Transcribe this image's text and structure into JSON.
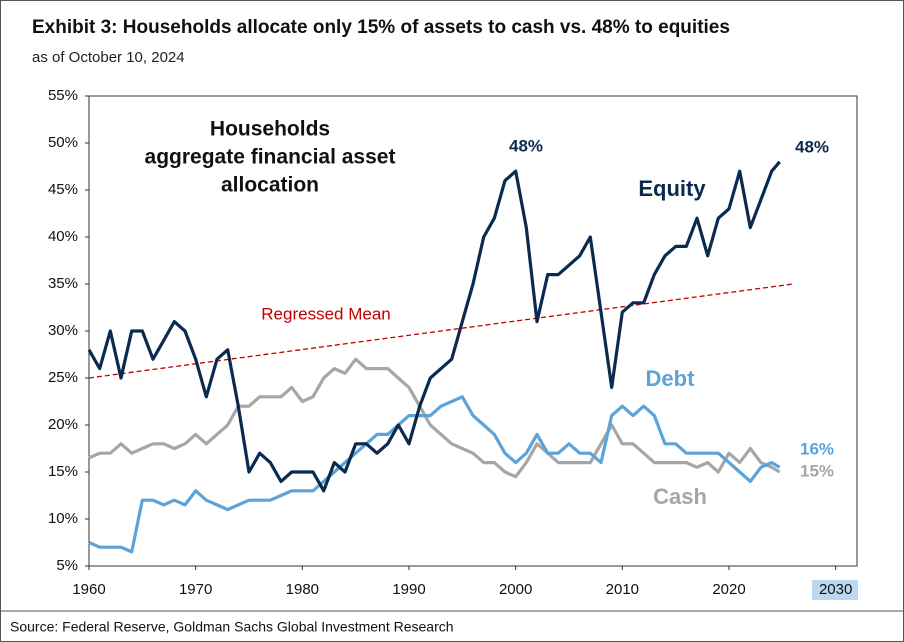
{
  "chart_data": {
    "type": "line",
    "title": "Exhibit 3: Households allocate only 15% of assets to cash vs. 48% to equities",
    "subtitle": "as of October 10, 2024",
    "inset_title": [
      "Households",
      "aggregate financial asset",
      "allocation"
    ],
    "source": "Source: Federal Reserve, Goldman Sachs Global Investment Research",
    "x": [
      1960,
      1961,
      1962,
      1963,
      1964,
      1965,
      1966,
      1967,
      1968,
      1969,
      1970,
      1971,
      1972,
      1973,
      1974,
      1975,
      1976,
      1977,
      1978,
      1979,
      1980,
      1981,
      1982,
      1983,
      1984,
      1985,
      1986,
      1987,
      1988,
      1989,
      1990,
      1991,
      1992,
      1993,
      1994,
      1995,
      1996,
      1997,
      1998,
      1999,
      2000,
      2001,
      2002,
      2003,
      2004,
      2005,
      2006,
      2007,
      2008,
      2009,
      2010,
      2011,
      2012,
      2013,
      2014,
      2015,
      2016,
      2017,
      2018,
      2019,
      2020,
      2021,
      2022,
      2023,
      2024,
      2024.75
    ],
    "series": [
      {
        "name": "Equity",
        "color": "#0b2a4f",
        "values": [
          28,
          26,
          30,
          25,
          30,
          30,
          27,
          29,
          31,
          30,
          27,
          23,
          27,
          28,
          22,
          15,
          17,
          16,
          14,
          15,
          15,
          15,
          13,
          16,
          15,
          18,
          18,
          17,
          18,
          20,
          18,
          22,
          25,
          26,
          27,
          31,
          35,
          40,
          42,
          46,
          47,
          41,
          31,
          36,
          36,
          37,
          38,
          40,
          32,
          24,
          32,
          33,
          33,
          36,
          38,
          39,
          39,
          42,
          38,
          42,
          43,
          47,
          41,
          44,
          47,
          48
        ]
      },
      {
        "name": "Debt",
        "color": "#5ba3d9",
        "values": [
          7.5,
          7,
          7,
          7,
          6.5,
          12,
          12,
          11.5,
          12,
          11.5,
          13,
          12,
          11.5,
          11,
          11.5,
          12,
          12,
          12,
          12.5,
          13,
          13,
          13,
          14,
          15,
          16,
          17,
          18,
          19,
          19,
          20,
          21,
          21,
          21,
          22,
          22.5,
          23,
          21,
          20,
          19,
          17,
          16,
          17,
          19,
          17,
          17,
          18,
          17,
          17,
          16,
          21,
          22,
          21,
          22,
          21,
          18,
          18,
          17,
          17,
          17,
          17,
          16,
          15,
          14,
          15.5,
          16,
          15.5
        ]
      },
      {
        "name": "Cash",
        "color": "#a6a6a6",
        "values": [
          16.5,
          17,
          17,
          18,
          17,
          17.5,
          18,
          18,
          17.5,
          18,
          19,
          18,
          19,
          20,
          22,
          22,
          23,
          23,
          23,
          24,
          22.5,
          23,
          25,
          26,
          25.5,
          27,
          26,
          26,
          26,
          25,
          24,
          22,
          20,
          19,
          18,
          17.5,
          17,
          16,
          16,
          15,
          14.5,
          16,
          18,
          17,
          16,
          16,
          16,
          16,
          18,
          20,
          18,
          18,
          17,
          16,
          16,
          16,
          16,
          15.5,
          16,
          15,
          17,
          16,
          17.5,
          16,
          15.5,
          15
        ]
      }
    ],
    "regressed_mean": {
      "name": "Regressed Mean",
      "color": "#c00000",
      "x": [
        1960,
        2026
      ],
      "values": [
        25,
        35
      ]
    },
    "annotations": [
      "48%",
      "48%",
      "16%",
      "15%"
    ],
    "xlim": [
      1960,
      2032
    ],
    "xticks": [
      1960,
      1970,
      1980,
      1990,
      2000,
      2010,
      2020,
      2030
    ],
    "ylim": [
      5,
      55
    ],
    "yticks": [
      {
        "value": 5,
        "label": "5%"
      },
      {
        "value": 10,
        "label": "10%"
      },
      {
        "value": 15,
        "label": "15%"
      },
      {
        "value": 20,
        "label": "20%"
      },
      {
        "value": 25,
        "label": "25%"
      },
      {
        "value": 30,
        "label": "30%"
      },
      {
        "value": 35,
        "label": "35%"
      },
      {
        "value": 40,
        "label": "40%"
      },
      {
        "value": 45,
        "label": "45%"
      },
      {
        "value": 50,
        "label": "50%"
      },
      {
        "value": 55,
        "label": "55%"
      }
    ]
  }
}
